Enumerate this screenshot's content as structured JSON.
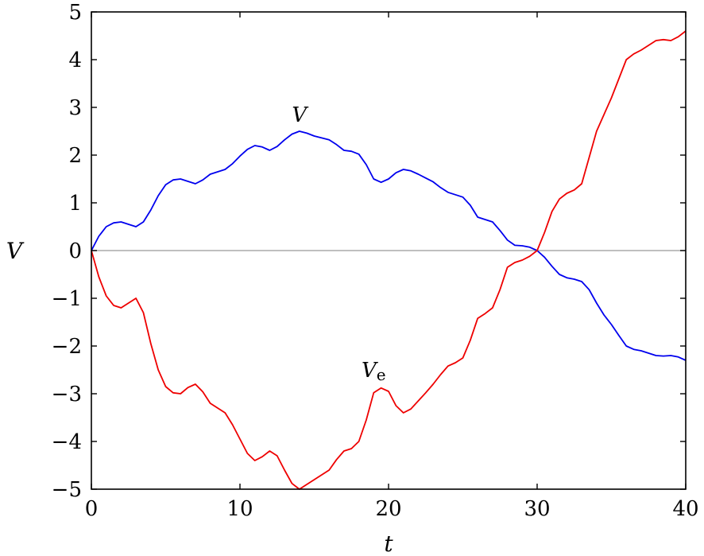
{
  "chart_data": {
    "type": "line",
    "title": "",
    "xlabel": "t",
    "ylabel": "V",
    "xlim": [
      0,
      40
    ],
    "ylim": [
      -5,
      5
    ],
    "xticks": [
      0,
      10,
      20,
      30,
      40
    ],
    "yticks": [
      -5,
      -4,
      -3,
      -2,
      -1,
      0,
      1,
      2,
      3,
      4,
      5
    ],
    "ytick_labels": [
      "−5",
      "−4",
      "−3",
      "−2",
      "−1",
      "0",
      "1",
      "2",
      "3",
      "4",
      "5"
    ],
    "xtick_labels": [
      "0",
      "10",
      "20",
      "30",
      "40"
    ],
    "grid": false,
    "reference_line": {
      "y": 0,
      "color": "#aaaaaa"
    },
    "series": [
      {
        "name": "V",
        "color": "#0000ee",
        "points": [
          [
            0,
            0
          ],
          [
            0.5,
            0.3
          ],
          [
            1,
            0.5
          ],
          [
            1.5,
            0.58
          ],
          [
            2,
            0.6
          ],
          [
            2.5,
            0.55
          ],
          [
            3,
            0.5
          ],
          [
            3.5,
            0.6
          ],
          [
            4,
            0.85
          ],
          [
            4.5,
            1.15
          ],
          [
            5,
            1.38
          ],
          [
            5.5,
            1.48
          ],
          [
            6,
            1.5
          ],
          [
            6.5,
            1.45
          ],
          [
            7,
            1.4
          ],
          [
            7.5,
            1.48
          ],
          [
            8,
            1.6
          ],
          [
            8.5,
            1.65
          ],
          [
            9,
            1.7
          ],
          [
            9.5,
            1.82
          ],
          [
            10,
            1.98
          ],
          [
            10.5,
            2.12
          ],
          [
            11,
            2.2
          ],
          [
            11.5,
            2.17
          ],
          [
            12,
            2.1
          ],
          [
            12.5,
            2.18
          ],
          [
            13,
            2.32
          ],
          [
            13.5,
            2.44
          ],
          [
            14,
            2.5
          ],
          [
            14.5,
            2.46
          ],
          [
            15,
            2.4
          ],
          [
            15.5,
            2.36
          ],
          [
            16,
            2.32
          ],
          [
            16.5,
            2.22
          ],
          [
            17,
            2.1
          ],
          [
            17.5,
            2.08
          ],
          [
            18,
            2.02
          ],
          [
            18.5,
            1.8
          ],
          [
            19,
            1.5
          ],
          [
            19.5,
            1.43
          ],
          [
            20,
            1.5
          ],
          [
            20.5,
            1.63
          ],
          [
            21,
            1.7
          ],
          [
            21.5,
            1.67
          ],
          [
            22,
            1.6
          ],
          [
            22.5,
            1.52
          ],
          [
            23,
            1.44
          ],
          [
            23.5,
            1.32
          ],
          [
            24,
            1.22
          ],
          [
            24.5,
            1.17
          ],
          [
            25,
            1.12
          ],
          [
            25.5,
            0.95
          ],
          [
            26,
            0.7
          ],
          [
            26.5,
            0.65
          ],
          [
            27,
            0.6
          ],
          [
            27.5,
            0.42
          ],
          [
            28,
            0.22
          ],
          [
            28.5,
            0.11
          ],
          [
            29,
            0.1
          ],
          [
            29.5,
            0.07
          ],
          [
            30,
            0
          ],
          [
            30.5,
            -0.14
          ],
          [
            31,
            -0.33
          ],
          [
            31.5,
            -0.5
          ],
          [
            32,
            -0.57
          ],
          [
            32.5,
            -0.6
          ],
          [
            33,
            -0.65
          ],
          [
            33.5,
            -0.82
          ],
          [
            34,
            -1.1
          ],
          [
            34.5,
            -1.35
          ],
          [
            35,
            -1.55
          ],
          [
            35.5,
            -1.78
          ],
          [
            36,
            -2.0
          ],
          [
            36.5,
            -2.07
          ],
          [
            37,
            -2.1
          ],
          [
            37.5,
            -2.15
          ],
          [
            38,
            -2.2
          ],
          [
            38.5,
            -2.21
          ],
          [
            39,
            -2.2
          ],
          [
            39.5,
            -2.23
          ],
          [
            40,
            -2.3
          ]
        ]
      },
      {
        "name": "Vₑ",
        "color": "#ee0000",
        "points": [
          [
            0,
            0
          ],
          [
            0.5,
            -0.55
          ],
          [
            1,
            -0.95
          ],
          [
            1.5,
            -1.15
          ],
          [
            2,
            -1.2
          ],
          [
            2.5,
            -1.1
          ],
          [
            3,
            -1.0
          ],
          [
            3.5,
            -1.3
          ],
          [
            4,
            -1.95
          ],
          [
            4.5,
            -2.5
          ],
          [
            5,
            -2.85
          ],
          [
            5.5,
            -2.98
          ],
          [
            6,
            -3.0
          ],
          [
            6.5,
            -2.87
          ],
          [
            7,
            -2.8
          ],
          [
            7.5,
            -2.96
          ],
          [
            8,
            -3.2
          ],
          [
            8.5,
            -3.3
          ],
          [
            9,
            -3.4
          ],
          [
            9.5,
            -3.65
          ],
          [
            10,
            -3.95
          ],
          [
            10.5,
            -4.25
          ],
          [
            11,
            -4.4
          ],
          [
            11.5,
            -4.32
          ],
          [
            12,
            -4.2
          ],
          [
            12.5,
            -4.3
          ],
          [
            13,
            -4.6
          ],
          [
            13.5,
            -4.88
          ],
          [
            14,
            -5.0
          ],
          [
            14.5,
            -4.9
          ],
          [
            15,
            -4.8
          ],
          [
            15.5,
            -4.7
          ],
          [
            16,
            -4.6
          ],
          [
            16.5,
            -4.38
          ],
          [
            17,
            -4.2
          ],
          [
            17.5,
            -4.15
          ],
          [
            18,
            -4.0
          ],
          [
            18.5,
            -3.55
          ],
          [
            19,
            -2.98
          ],
          [
            19.5,
            -2.88
          ],
          [
            20,
            -2.95
          ],
          [
            20.5,
            -3.25
          ],
          [
            21,
            -3.4
          ],
          [
            21.5,
            -3.32
          ],
          [
            22,
            -3.15
          ],
          [
            22.5,
            -2.98
          ],
          [
            23,
            -2.8
          ],
          [
            23.5,
            -2.6
          ],
          [
            24,
            -2.42
          ],
          [
            24.5,
            -2.35
          ],
          [
            25,
            -2.25
          ],
          [
            25.5,
            -1.88
          ],
          [
            26,
            -1.42
          ],
          [
            26.5,
            -1.32
          ],
          [
            27,
            -1.2
          ],
          [
            27.5,
            -0.82
          ],
          [
            28,
            -0.35
          ],
          [
            28.5,
            -0.25
          ],
          [
            29,
            -0.2
          ],
          [
            29.5,
            -0.12
          ],
          [
            30,
            0.0
          ],
          [
            30.5,
            0.38
          ],
          [
            31,
            0.82
          ],
          [
            31.5,
            1.08
          ],
          [
            32,
            1.2
          ],
          [
            32.5,
            1.27
          ],
          [
            33,
            1.4
          ],
          [
            33.5,
            1.95
          ],
          [
            34,
            2.5
          ],
          [
            34.5,
            2.85
          ],
          [
            35,
            3.2
          ],
          [
            35.5,
            3.6
          ],
          [
            36,
            4.0
          ],
          [
            36.5,
            4.12
          ],
          [
            37,
            4.2
          ],
          [
            37.5,
            4.3
          ],
          [
            38,
            4.4
          ],
          [
            38.5,
            4.42
          ],
          [
            39,
            4.4
          ],
          [
            39.5,
            4.48
          ],
          [
            40,
            4.6
          ]
        ]
      }
    ],
    "annotations": [
      {
        "text": "V",
        "subscript": "",
        "x": 14.0,
        "y": 2.7
      },
      {
        "text": "V",
        "subscript": "e",
        "x": 19.0,
        "y": -2.65
      }
    ]
  }
}
